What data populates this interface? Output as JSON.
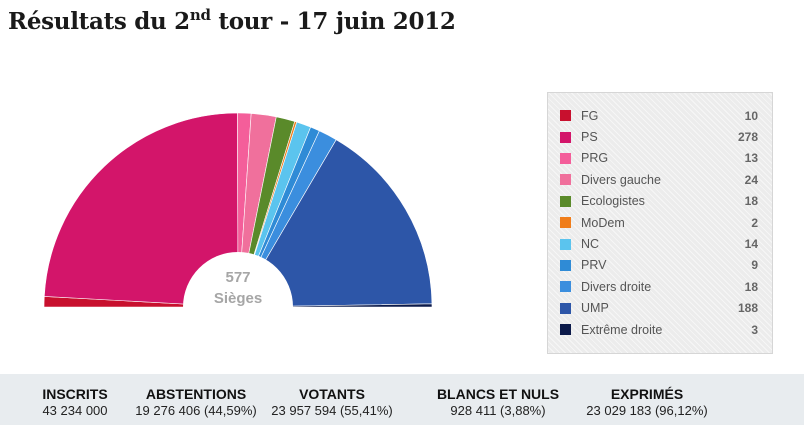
{
  "title": {
    "main": "Résultats du 2",
    "sup": "nd",
    "rest": " tour - 17 juin 2012"
  },
  "chart_data": {
    "type": "pie",
    "variant": "half-donut (hemicycle)",
    "center_label": {
      "value": "577",
      "unit": "Sièges"
    },
    "categories": [
      "FG",
      "PS",
      "PRG",
      "Divers gauche",
      "Ecologistes",
      "MoDem",
      "NC",
      "PRV",
      "Divers droite",
      "UMP",
      "Extrême droite"
    ],
    "values": [
      10,
      278,
      13,
      24,
      18,
      2,
      14,
      9,
      18,
      188,
      3
    ],
    "colors": [
      "#c8102e",
      "#d3156a",
      "#f45e9a",
      "#f0709c",
      "#5a8a2a",
      "#f07d1a",
      "#5bc4ee",
      "#2f8bd6",
      "#3b8ede",
      "#2d56a8",
      "#0c1a4a"
    ],
    "legend": "right"
  },
  "stats": [
    {
      "label": "INSCRITS",
      "value": "43 234 000"
    },
    {
      "label": "ABSTENTIONS",
      "value": "19 276 406 (44,59%)"
    },
    {
      "label": "VOTANTS",
      "value": "23 957 594 (55,41%)"
    },
    {
      "label": "BLANCS ET NULS",
      "value": "928 411 (3,88%)"
    },
    {
      "label": "EXPRIMÉS",
      "value": "23 029 183 (96,12%)"
    }
  ]
}
